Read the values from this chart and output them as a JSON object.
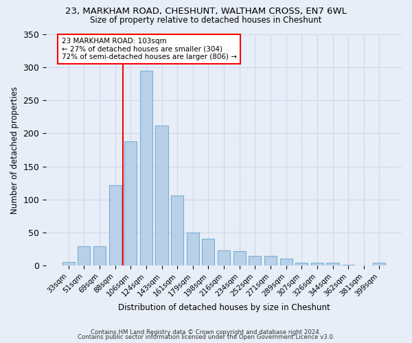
{
  "title": "23, MARKHAM ROAD, CHESHUNT, WALTHAM CROSS, EN7 6WL",
  "subtitle": "Size of property relative to detached houses in Cheshunt",
  "xlabel": "Distribution of detached houses by size in Cheshunt",
  "ylabel": "Number of detached properties",
  "categories": [
    "33sqm",
    "51sqm",
    "69sqm",
    "88sqm",
    "106sqm",
    "124sqm",
    "143sqm",
    "161sqm",
    "179sqm",
    "198sqm",
    "216sqm",
    "234sqm",
    "252sqm",
    "271sqm",
    "289sqm",
    "307sqm",
    "326sqm",
    "344sqm",
    "362sqm",
    "381sqm",
    "399sqm"
  ],
  "values": [
    5,
    29,
    29,
    122,
    188,
    295,
    212,
    106,
    50,
    41,
    23,
    22,
    15,
    15,
    10,
    4,
    4,
    4,
    1,
    0,
    4
  ],
  "bar_color": "#b8d0e8",
  "bar_edge_color": "#7aafd4",
  "vline_x_index": 3.5,
  "vline_color": "red",
  "annotation_line1": "23 MARKHAM ROAD: 103sqm",
  "annotation_line2": "← 27% of detached houses are smaller (304)",
  "annotation_line3": "72% of semi-detached houses are larger (806) →",
  "annotation_box_color": "white",
  "annotation_box_edge": "red",
  "ylim": [
    0,
    350
  ],
  "yticks": [
    0,
    50,
    100,
    150,
    200,
    250,
    300,
    350
  ],
  "grid_color": "#d0d8e8",
  "bg_color": "#e8eef8",
  "footer1": "Contains HM Land Registry data © Crown copyright and database right 2024.",
  "footer2": "Contains public sector information licensed under the Open Government Licence v3.0."
}
